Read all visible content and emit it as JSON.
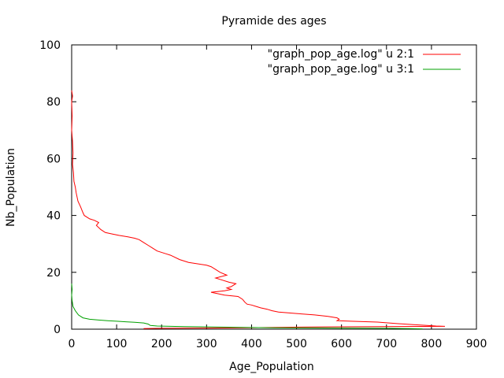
{
  "chart_data": {
    "type": "line",
    "title": "Pyramide des ages",
    "xlabel": "Age_Population",
    "ylabel": "Nb_Population",
    "xlim": [
      0,
      900
    ],
    "ylim": [
      0,
      100
    ],
    "xticks": [
      0,
      100,
      200,
      300,
      400,
      500,
      600,
      700,
      800,
      900
    ],
    "yticks": [
      0,
      20,
      40,
      60,
      80,
      100
    ],
    "grid": false,
    "legend_position": "top-right",
    "series": [
      {
        "name": "\"graph_pop_age.log\" u 2:1",
        "color": "#ff0000",
        "points": [
          [
            0,
            84
          ],
          [
            2,
            82
          ],
          [
            0,
            80
          ],
          [
            1,
            75
          ],
          [
            0,
            70
          ],
          [
            2,
            66
          ],
          [
            3,
            62
          ],
          [
            2,
            58
          ],
          [
            4,
            55
          ],
          [
            5,
            52
          ],
          [
            8,
            50
          ],
          [
            10,
            48
          ],
          [
            14,
            45
          ],
          [
            20,
            43
          ],
          [
            25,
            41
          ],
          [
            28,
            40
          ],
          [
            40,
            38.8
          ],
          [
            50,
            38.3
          ],
          [
            60,
            37.5
          ],
          [
            55,
            36.5
          ],
          [
            65,
            35
          ],
          [
            75,
            34
          ],
          [
            90,
            33.5
          ],
          [
            105,
            33
          ],
          [
            125,
            32.5
          ],
          [
            140,
            32
          ],
          [
            150,
            31.5
          ],
          [
            160,
            30.5
          ],
          [
            170,
            29.5
          ],
          [
            180,
            28.5
          ],
          [
            190,
            27.5
          ],
          [
            210,
            26.5
          ],
          [
            220,
            26
          ],
          [
            240,
            24.5
          ],
          [
            260,
            23.5
          ],
          [
            280,
            23
          ],
          [
            300,
            22.5
          ],
          [
            310,
            22
          ],
          [
            320,
            21
          ],
          [
            330,
            20
          ],
          [
            345,
            19
          ],
          [
            320,
            18
          ],
          [
            330,
            17.5
          ],
          [
            350,
            16.5
          ],
          [
            365,
            16
          ],
          [
            355,
            15
          ],
          [
            345,
            14.5
          ],
          [
            355,
            14
          ],
          [
            340,
            13.5
          ],
          [
            310,
            13
          ],
          [
            340,
            12
          ],
          [
            370,
            11.5
          ],
          [
            380,
            10.5
          ],
          [
            385,
            9.5
          ],
          [
            390,
            8.8
          ],
          [
            400,
            8.5
          ],
          [
            410,
            8
          ],
          [
            420,
            7.5
          ],
          [
            435,
            7
          ],
          [
            445,
            6.5
          ],
          [
            460,
            6
          ],
          [
            500,
            5.5
          ],
          [
            540,
            5
          ],
          [
            570,
            4.5
          ],
          [
            590,
            4
          ],
          [
            595,
            3.5
          ],
          [
            590,
            3
          ],
          [
            620,
            2.8
          ],
          [
            680,
            2.5
          ],
          [
            720,
            2
          ],
          [
            760,
            1.6
          ],
          [
            790,
            1.3
          ],
          [
            810,
            1.1
          ],
          [
            830,
            1
          ],
          [
            560,
            0.8
          ],
          [
            450,
            0.6
          ],
          [
            380,
            0.5
          ],
          [
            300,
            0.4
          ],
          [
            200,
            0.3
          ],
          [
            160,
            0.2
          ]
        ]
      },
      {
        "name": "\"graph_pop_age.log\" u 3:1",
        "color": "#00a000",
        "points": [
          [
            0,
            16
          ],
          [
            1,
            14
          ],
          [
            0,
            12
          ],
          [
            1,
            10
          ],
          [
            3,
            8
          ],
          [
            8,
            6.5
          ],
          [
            15,
            5
          ],
          [
            25,
            4
          ],
          [
            40,
            3.5
          ],
          [
            60,
            3.2
          ],
          [
            80,
            3
          ],
          [
            100,
            2.8
          ],
          [
            120,
            2.6
          ],
          [
            140,
            2.4
          ],
          [
            160,
            2.2
          ],
          [
            170,
            1.8
          ],
          [
            175,
            1.3
          ],
          [
            190,
            1.1
          ],
          [
            250,
            0.9
          ],
          [
            350,
            0.7
          ],
          [
            450,
            0.5
          ],
          [
            600,
            0.4
          ],
          [
            700,
            0.3
          ],
          [
            750,
            0.2
          ],
          [
            780,
            0.1
          ]
        ]
      }
    ]
  }
}
